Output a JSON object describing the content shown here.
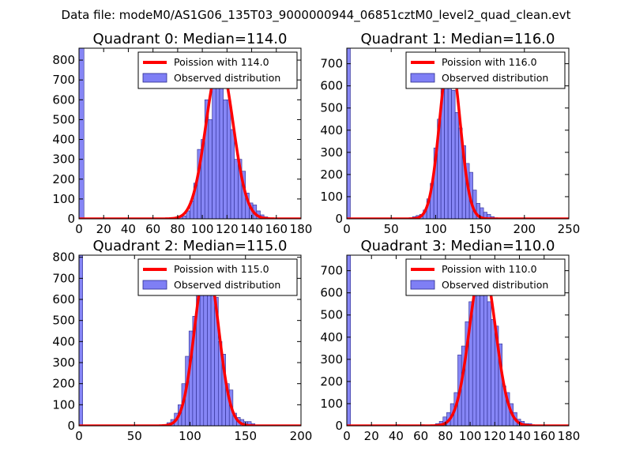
{
  "suptitle": "Data file: modeM0/AS1G06_135T03_9000000944_06851cztM0_level2_quad_clean.evt",
  "colors": {
    "fit": "#ff0000",
    "bar_fill": "#7f7ff5",
    "bar_edge": "#2b2b8f",
    "axis": "#000000"
  },
  "chart_data": [
    {
      "type": "bar",
      "title": "Quadrant 0: Median=114.0",
      "xlim": [
        0,
        180
      ],
      "ylim": [
        0,
        860
      ],
      "xticks": [
        0,
        20,
        40,
        60,
        80,
        100,
        120,
        140,
        160,
        180
      ],
      "yticks": [
        0,
        100,
        200,
        300,
        400,
        500,
        600,
        700,
        800
      ],
      "legend": {
        "placement": "top-right",
        "fit_label": "Poission with 114.0",
        "hist_label": "Observed distribution"
      },
      "fit": {
        "mean": 114,
        "peak": 790,
        "sigma": 11
      },
      "bins": [
        [
          0,
          4,
          860
        ],
        [
          78,
          81,
          5
        ],
        [
          81,
          84,
          10
        ],
        [
          84,
          87,
          15
        ],
        [
          87,
          90,
          40
        ],
        [
          90,
          93,
          90
        ],
        [
          93,
          96,
          180
        ],
        [
          96,
          99,
          350
        ],
        [
          99,
          102,
          400
        ],
        [
          102,
          105,
          600
        ],
        [
          105,
          108,
          500
        ],
        [
          108,
          111,
          690
        ],
        [
          111,
          114,
          820
        ],
        [
          114,
          117,
          800
        ],
        [
          117,
          120,
          600
        ],
        [
          120,
          123,
          600
        ],
        [
          123,
          126,
          450
        ],
        [
          126,
          129,
          300
        ],
        [
          129,
          132,
          300
        ],
        [
          132,
          135,
          240
        ],
        [
          135,
          138,
          130
        ],
        [
          138,
          141,
          80
        ],
        [
          141,
          144,
          70
        ],
        [
          144,
          147,
          40
        ],
        [
          147,
          150,
          20
        ],
        [
          150,
          153,
          10
        ]
      ]
    },
    {
      "type": "bar",
      "title": "Quadrant 1: Median=116.0",
      "xlim": [
        0,
        250
      ],
      "ylim": [
        0,
        770
      ],
      "xticks": [
        0,
        50,
        100,
        150,
        200,
        250
      ],
      "yticks": [
        0,
        100,
        200,
        300,
        400,
        500,
        600,
        700
      ],
      "legend": {
        "placement": "top-right",
        "fit_label": "Poission with 116.0",
        "hist_label": "Observed distribution"
      },
      "fit": {
        "mean": 116,
        "peak": 745,
        "sigma": 11.3
      },
      "bins": [
        [
          0,
          4,
          770
        ],
        [
          70,
          74,
          5
        ],
        [
          74,
          78,
          10
        ],
        [
          78,
          82,
          15
        ],
        [
          82,
          86,
          20
        ],
        [
          86,
          90,
          40
        ],
        [
          90,
          94,
          90
        ],
        [
          94,
          98,
          160
        ],
        [
          98,
          102,
          320
        ],
        [
          102,
          106,
          450
        ],
        [
          106,
          110,
          620
        ],
        [
          110,
          114,
          700
        ],
        [
          114,
          118,
          630
        ],
        [
          118,
          122,
          580
        ],
        [
          122,
          126,
          480
        ],
        [
          126,
          130,
          410
        ],
        [
          130,
          134,
          330
        ],
        [
          134,
          138,
          250
        ],
        [
          138,
          142,
          210
        ],
        [
          142,
          146,
          130
        ],
        [
          146,
          150,
          70
        ],
        [
          150,
          154,
          50
        ],
        [
          154,
          158,
          30
        ],
        [
          158,
          162,
          20
        ],
        [
          162,
          166,
          10
        ],
        [
          166,
          170,
          5
        ]
      ]
    },
    {
      "type": "bar",
      "title": "Quadrant 2: Median=115.0",
      "xlim": [
        0,
        200
      ],
      "ylim": [
        0,
        810
      ],
      "xticks": [
        0,
        50,
        100,
        150,
        200
      ],
      "yticks": [
        0,
        100,
        200,
        300,
        400,
        500,
        600,
        700,
        800
      ],
      "legend": {
        "placement": "top-right",
        "fit_label": "Poission with 115.0",
        "hist_label": "Observed distribution"
      },
      "fit": {
        "mean": 115,
        "peak": 775,
        "sigma": 10.7
      },
      "bins": [
        [
          0,
          3.3,
          810
        ],
        [
          76,
          79.3,
          5
        ],
        [
          79.3,
          82.6,
          15
        ],
        [
          82.6,
          85.9,
          30
        ],
        [
          85.9,
          89.2,
          60
        ],
        [
          89.2,
          92.5,
          100
        ],
        [
          92.5,
          95.8,
          200
        ],
        [
          95.8,
          99.1,
          330
        ],
        [
          99.1,
          102.4,
          450
        ],
        [
          102.4,
          105.7,
          520
        ],
        [
          105.7,
          109,
          660
        ],
        [
          109,
          112.3,
          690
        ],
        [
          112.3,
          115.6,
          720
        ],
        [
          115.6,
          118.9,
          760
        ],
        [
          118.9,
          122.2,
          700
        ],
        [
          122.2,
          125.5,
          610
        ],
        [
          125.5,
          128.8,
          400
        ],
        [
          128.8,
          132.1,
          340
        ],
        [
          132.1,
          135.4,
          200
        ],
        [
          135.4,
          138.7,
          170
        ],
        [
          138.7,
          142,
          60
        ],
        [
          142,
          145.3,
          40
        ],
        [
          145.3,
          148.6,
          30
        ],
        [
          148.6,
          151.9,
          20
        ],
        [
          151.9,
          155.2,
          20
        ],
        [
          155.2,
          158.5,
          10
        ]
      ]
    },
    {
      "type": "bar",
      "title": "Quadrant 3: Median=110.0",
      "xlim": [
        0,
        180
      ],
      "ylim": [
        0,
        770
      ],
      "xticks": [
        0,
        20,
        40,
        60,
        80,
        100,
        120,
        140,
        160,
        180
      ],
      "yticks": [
        0,
        100,
        200,
        300,
        400,
        500,
        600,
        700
      ],
      "legend": {
        "placement": "top-right",
        "fit_label": "Poission with 110.0",
        "hist_label": "Observed distribution"
      },
      "fit": {
        "mean": 110,
        "peak": 730,
        "sigma": 10.5
      },
      "bins": [
        [
          0,
          3,
          770
        ],
        [
          40,
          43,
          5
        ],
        [
          60,
          63,
          5
        ],
        [
          72,
          75,
          10
        ],
        [
          75,
          78,
          20
        ],
        [
          78,
          81,
          40
        ],
        [
          81,
          84,
          60
        ],
        [
          84,
          87,
          100
        ],
        [
          87,
          90,
          150
        ],
        [
          90,
          93,
          320
        ],
        [
          93,
          96,
          360
        ],
        [
          96,
          99,
          470
        ],
        [
          99,
          102,
          560
        ],
        [
          102,
          105,
          680
        ],
        [
          105,
          108,
          720
        ],
        [
          108,
          111,
          720
        ],
        [
          111,
          114,
          690
        ],
        [
          114,
          117,
          560
        ],
        [
          117,
          120,
          480
        ],
        [
          120,
          123,
          450
        ],
        [
          123,
          126,
          370
        ],
        [
          126,
          129,
          180
        ],
        [
          129,
          132,
          150
        ],
        [
          132,
          135,
          100
        ],
        [
          135,
          138,
          60
        ],
        [
          138,
          141,
          30
        ],
        [
          141,
          144,
          20
        ],
        [
          144,
          147,
          10
        ],
        [
          147,
          150,
          10
        ]
      ]
    }
  ]
}
